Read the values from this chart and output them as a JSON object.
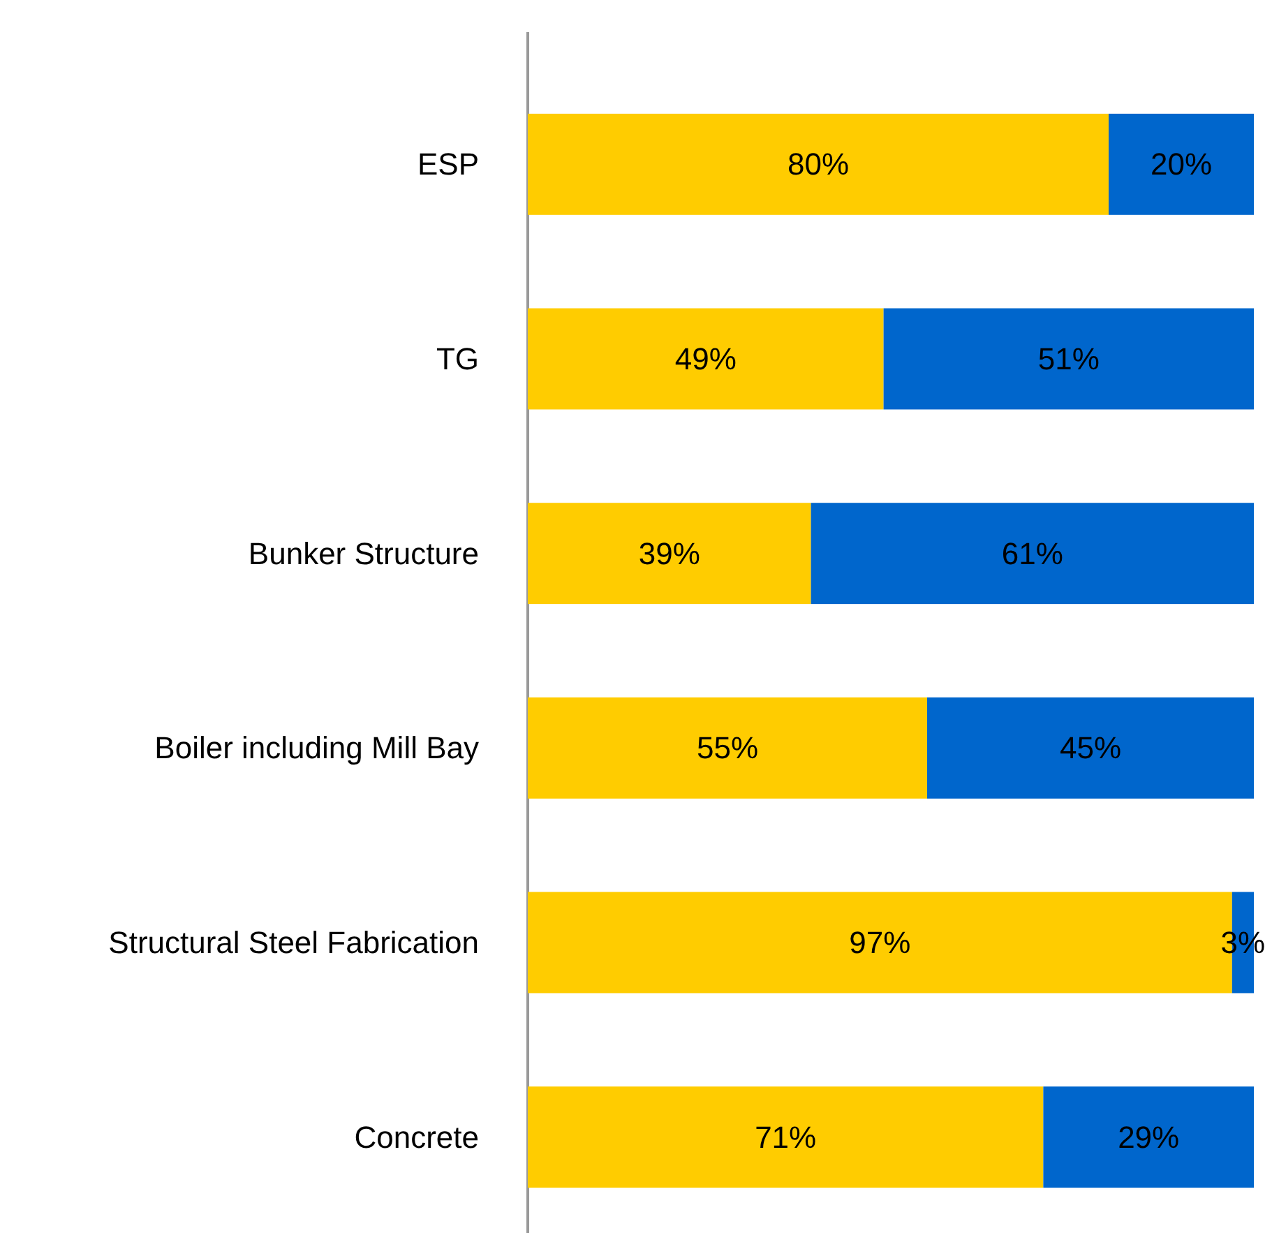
{
  "chart_data": {
    "type": "bar",
    "orientation": "horizontal",
    "stacked": true,
    "categories": [
      "ESP",
      "TG",
      "Bunker Structure",
      "Boiler including Mill Bay",
      "Structural Steel Fabrication",
      "Concrete"
    ],
    "series": [
      {
        "color": "#ffcc00",
        "values": [
          80,
          49,
          39,
          55,
          97,
          71
        ],
        "value_labels": [
          "80%",
          "49%",
          "39%",
          "55%",
          "97%",
          "71%"
        ]
      },
      {
        "color": "#0066cc",
        "values": [
          20,
          51,
          61,
          45,
          3,
          29
        ],
        "value_labels": [
          "20%",
          "51%",
          "61%",
          "45%",
          "3%",
          "29%"
        ]
      }
    ]
  }
}
